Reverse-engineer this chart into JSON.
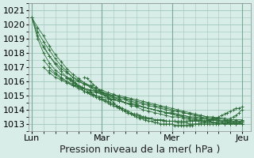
{
  "background_color": "#d8ede8",
  "plot_bg_color": "#d8ede8",
  "grid_color": "#a0c8b8",
  "line_color": "#2d6e3a",
  "marker_color": "#2d6e3a",
  "xlabel": "Pression niveau de la mer( hPa )",
  "ylim": [
    1012.5,
    1021.5
  ],
  "yticks": [
    1013,
    1014,
    1015,
    1016,
    1017,
    1018,
    1019,
    1020,
    1021
  ],
  "xtick_labels": [
    "Lun",
    "Mar",
    "Mer",
    "Jeu"
  ],
  "xtick_positions": [
    0,
    48,
    96,
    144
  ],
  "xlim": [
    -2,
    150
  ],
  "xlabel_fontsize": 9,
  "tick_fontsize": 8,
  "series": [
    {
      "x": [
        0,
        4,
        8,
        12,
        16,
        20,
        24,
        28,
        32,
        36,
        40,
        44,
        48,
        52,
        56,
        60,
        64,
        68,
        72,
        76,
        80,
        84,
        88,
        92,
        96,
        100,
        104,
        108,
        112,
        116,
        120,
        124,
        128,
        132,
        136,
        140,
        144
      ],
      "y": [
        1020.5,
        1019.8,
        1019.2,
        1018.5,
        1017.9,
        1017.4,
        1016.9,
        1016.5,
        1016.2,
        1015.9,
        1015.6,
        1015.3,
        1015.1,
        1014.9,
        1014.7,
        1014.6,
        1014.5,
        1014.4,
        1014.3,
        1014.2,
        1014.1,
        1014.0,
        1013.9,
        1013.8,
        1013.8,
        1013.7,
        1013.6,
        1013.5,
        1013.5,
        1013.4,
        1013.4,
        1013.3,
        1013.3,
        1013.2,
        1013.2,
        1013.2,
        1013.2
      ]
    },
    {
      "x": [
        0,
        4,
        8,
        12,
        16,
        20,
        24,
        28,
        32,
        36,
        40,
        44,
        48,
        52,
        56,
        60,
        64,
        68,
        72,
        76,
        80,
        84,
        88,
        92,
        96,
        100,
        104,
        108,
        112,
        116,
        120,
        124,
        128,
        132,
        136,
        140,
        144
      ],
      "y": [
        1020.5,
        1019.5,
        1018.8,
        1018.2,
        1017.6,
        1017.1,
        1016.7,
        1016.3,
        1016.0,
        1015.8,
        1015.6,
        1015.4,
        1015.2,
        1015.0,
        1014.8,
        1014.7,
        1014.5,
        1014.4,
        1014.3,
        1014.2,
        1014.1,
        1014.0,
        1013.9,
        1013.8,
        1013.7,
        1013.6,
        1013.6,
        1013.5,
        1013.4,
        1013.4,
        1013.3,
        1013.3,
        1013.2,
        1013.2,
        1013.1,
        1013.1,
        1013.1
      ]
    },
    {
      "x": [
        0,
        4,
        8,
        12,
        16,
        20,
        24,
        28,
        32,
        36,
        40,
        44,
        48,
        52,
        56,
        60,
        64,
        68,
        72,
        76,
        80,
        84,
        88,
        92,
        96,
        100,
        104,
        108,
        112,
        116,
        120,
        124,
        128,
        132,
        136,
        140,
        144
      ],
      "y": [
        1020.5,
        1019.2,
        1018.4,
        1017.8,
        1017.3,
        1016.9,
        1016.6,
        1016.3,
        1016.1,
        1015.9,
        1015.7,
        1015.5,
        1015.4,
        1015.2,
        1015.1,
        1014.9,
        1014.8,
        1014.6,
        1014.5,
        1014.4,
        1014.3,
        1014.2,
        1014.1,
        1014.0,
        1013.9,
        1013.9,
        1013.8,
        1013.7,
        1013.6,
        1013.6,
        1013.5,
        1013.5,
        1013.4,
        1013.4,
        1013.3,
        1013.3,
        1013.3
      ]
    },
    {
      "x": [
        0,
        4,
        8,
        12,
        16,
        20,
        24,
        28,
        32,
        36,
        40,
        44,
        48,
        52,
        56,
        60,
        64,
        68,
        72,
        76,
        80,
        84,
        88,
        92,
        96,
        100,
        104,
        108,
        112,
        116,
        120,
        124,
        128,
        132,
        136,
        140,
        144
      ],
      "y": [
        1020.5,
        1019.0,
        1018.0,
        1017.3,
        1016.8,
        1016.5,
        1016.3,
        1016.1,
        1016.0,
        1015.8,
        1015.7,
        1015.5,
        1015.3,
        1015.1,
        1014.9,
        1014.7,
        1014.5,
        1014.3,
        1014.2,
        1014.0,
        1013.9,
        1013.8,
        1013.7,
        1013.6,
        1013.5,
        1013.5,
        1013.4,
        1013.3,
        1013.2,
        1013.2,
        1013.1,
        1013.1,
        1013.0,
        1013.0,
        1013.0,
        1013.0,
        1013.0
      ]
    },
    {
      "x": [
        8,
        12,
        16,
        20,
        24,
        28,
        32,
        36,
        40,
        44,
        48,
        52,
        56,
        60,
        64,
        68,
        72,
        76,
        80,
        84,
        88,
        92,
        96,
        100,
        104,
        108,
        112,
        116,
        120,
        124,
        128,
        132,
        136,
        140,
        144
      ],
      "y": [
        1018.5,
        1017.8,
        1017.2,
        1016.7,
        1016.3,
        1016.0,
        1015.7,
        1015.5,
        1015.3,
        1015.2,
        1015.1,
        1015.0,
        1014.9,
        1014.8,
        1014.7,
        1014.5,
        1014.4,
        1014.2,
        1014.1,
        1014.0,
        1013.9,
        1013.8,
        1013.7,
        1013.6,
        1013.5,
        1013.4,
        1013.3,
        1013.3,
        1013.2,
        1013.1,
        1013.1,
        1013.0,
        1013.0,
        1013.0,
        1013.0
      ]
    },
    {
      "x": [
        8,
        12,
        16,
        20,
        24,
        28,
        32,
        36,
        40,
        44,
        48,
        52,
        56,
        60,
        64,
        68,
        72,
        76,
        80,
        84,
        88,
        92,
        96,
        100,
        104,
        108,
        112,
        116,
        120,
        124,
        128,
        132,
        136,
        140,
        144
      ],
      "y": [
        1017.5,
        1017.0,
        1016.6,
        1016.3,
        1016.0,
        1015.7,
        1015.5,
        1015.3,
        1015.1,
        1015.0,
        1014.9,
        1014.8,
        1014.7,
        1014.6,
        1014.5,
        1014.4,
        1014.3,
        1014.2,
        1014.1,
        1014.0,
        1013.9,
        1013.8,
        1013.7,
        1013.6,
        1013.5,
        1013.4,
        1013.3,
        1013.2,
        1013.2,
        1013.1,
        1013.1,
        1013.0,
        1013.0,
        1013.0,
        1013.0
      ]
    },
    {
      "x": [
        8,
        12,
        16,
        20,
        24,
        28,
        32,
        36,
        40,
        44,
        48,
        52,
        56,
        60,
        64,
        68,
        72,
        76,
        80,
        84,
        88,
        92,
        96,
        100,
        104,
        108,
        112,
        116,
        120,
        124,
        128,
        132,
        136,
        140,
        144
      ],
      "y": [
        1017.0,
        1016.6,
        1016.3,
        1016.1,
        1015.9,
        1015.7,
        1015.6,
        1015.5,
        1015.4,
        1015.3,
        1015.2,
        1015.1,
        1015.0,
        1015.0,
        1014.9,
        1014.8,
        1014.7,
        1014.6,
        1014.5,
        1014.4,
        1014.3,
        1014.2,
        1014.1,
        1014.0,
        1013.9,
        1013.8,
        1013.7,
        1013.6,
        1013.5,
        1013.4,
        1013.4,
        1013.3,
        1013.2,
        1013.2,
        1013.2
      ]
    },
    {
      "x": [
        12,
        16,
        20,
        24,
        28,
        32,
        36,
        40,
        44,
        48,
        52,
        56,
        60,
        64,
        68,
        72,
        76,
        80,
        84,
        88,
        92,
        96,
        100,
        104,
        108,
        112,
        116,
        120,
        124,
        128,
        132,
        136,
        140,
        144
      ],
      "y": [
        1016.8,
        1016.5,
        1016.2,
        1016.0,
        1015.8,
        1015.6,
        1015.5,
        1015.4,
        1015.3,
        1015.2,
        1015.1,
        1015.0,
        1014.9,
        1014.8,
        1014.7,
        1014.6,
        1014.5,
        1014.4,
        1014.3,
        1014.2,
        1014.1,
        1014.0,
        1013.9,
        1013.8,
        1013.7,
        1013.6,
        1013.5,
        1013.4,
        1013.3,
        1013.2,
        1013.2,
        1013.1,
        1013.1,
        1013.1
      ]
    }
  ],
  "dense_series": [
    {
      "x": [
        24,
        26,
        28,
        30,
        32,
        34,
        36,
        38,
        40,
        42,
        44,
        46,
        48,
        50,
        52,
        54,
        56,
        58,
        60,
        62,
        64,
        66,
        68,
        70,
        72,
        74,
        76,
        78,
        80,
        82,
        84,
        86,
        88,
        90,
        92,
        94,
        96,
        98,
        100,
        102,
        104,
        106,
        108,
        110,
        112,
        114,
        116,
        118,
        120,
        122,
        124,
        126,
        128,
        130,
        132,
        134,
        136,
        138,
        140,
        142,
        144
      ],
      "y": [
        1016.3,
        1016.2,
        1016.0,
        1015.9,
        1015.7,
        1015.6,
        1015.5,
        1015.3,
        1015.2,
        1015.1,
        1015.0,
        1014.9,
        1014.8,
        1014.7,
        1014.6,
        1014.5,
        1014.4,
        1014.3,
        1014.2,
        1014.1,
        1014.0,
        1013.9,
        1013.8,
        1013.7,
        1013.7,
        1013.6,
        1013.5,
        1013.5,
        1013.4,
        1013.4,
        1013.3,
        1013.3,
        1013.3,
        1013.2,
        1013.2,
        1013.2,
        1013.2,
        1013.2,
        1013.2,
        1013.2,
        1013.2,
        1013.2,
        1013.2,
        1013.2,
        1013.2,
        1013.2,
        1013.2,
        1013.2,
        1013.2,
        1013.2,
        1013.1,
        1013.1,
        1013.1,
        1013.1,
        1013.1,
        1013.1,
        1013.1,
        1013.1,
        1013.1,
        1013.1,
        1013.2
      ]
    },
    {
      "x": [
        24,
        26,
        28,
        30,
        32,
        34,
        36,
        38,
        40,
        42,
        44,
        46,
        48,
        50,
        52,
        54,
        56,
        58,
        60,
        62,
        64,
        66,
        68,
        70,
        72,
        74,
        76,
        78,
        80,
        82,
        84,
        86,
        88,
        90,
        92,
        94,
        96,
        98,
        100,
        102,
        104,
        106,
        108,
        110,
        112,
        114,
        116,
        118,
        120,
        122,
        124,
        126,
        128,
        130,
        132,
        134,
        136,
        138,
        140,
        142,
        144
      ],
      "y": [
        1016.2,
        1016.1,
        1015.9,
        1015.8,
        1015.6,
        1015.5,
        1015.3,
        1015.2,
        1015.1,
        1015.0,
        1014.9,
        1014.8,
        1014.7,
        1014.6,
        1014.5,
        1014.4,
        1014.3,
        1014.2,
        1014.1,
        1014.0,
        1013.9,
        1013.8,
        1013.7,
        1013.6,
        1013.5,
        1013.4,
        1013.4,
        1013.3,
        1013.2,
        1013.2,
        1013.1,
        1013.1,
        1013.0,
        1013.0,
        1013.0,
        1013.0,
        1013.0,
        1012.9,
        1012.9,
        1012.9,
        1012.9,
        1012.9,
        1012.9,
        1012.9,
        1013.0,
        1013.0,
        1013.1,
        1013.1,
        1013.2,
        1013.3,
        1013.4,
        1013.4,
        1013.5,
        1013.6,
        1013.7,
        1013.8,
        1013.9,
        1014.0,
        1014.1,
        1014.1,
        1014.2
      ]
    },
    {
      "x": [
        36,
        38,
        40,
        42,
        44,
        46,
        48,
        50,
        52,
        54,
        56,
        58,
        60,
        62,
        64,
        66,
        68,
        70,
        72,
        74,
        76,
        78,
        80,
        82,
        84,
        86,
        88,
        90,
        92,
        94,
        96,
        98,
        100,
        102,
        104,
        106,
        108,
        110,
        112,
        114,
        116,
        118,
        120,
        122,
        124,
        126,
        128,
        130,
        132,
        134,
        136,
        138,
        140,
        142,
        144
      ],
      "y": [
        1016.3,
        1016.2,
        1016.0,
        1015.8,
        1015.6,
        1015.4,
        1015.2,
        1015.0,
        1014.9,
        1014.7,
        1014.5,
        1014.3,
        1014.2,
        1014.0,
        1013.9,
        1013.8,
        1013.7,
        1013.6,
        1013.6,
        1013.5,
        1013.5,
        1013.4,
        1013.4,
        1013.4,
        1013.3,
        1013.3,
        1013.3,
        1013.3,
        1013.2,
        1013.2,
        1013.2,
        1013.2,
        1013.1,
        1013.1,
        1013.1,
        1013.1,
        1013.0,
        1013.0,
        1013.0,
        1013.0,
        1013.0,
        1013.0,
        1013.0,
        1013.0,
        1013.0,
        1013.0,
        1013.0,
        1013.1,
        1013.2,
        1013.3,
        1013.4,
        1013.5,
        1013.6,
        1013.8,
        1014.0
      ]
    }
  ]
}
